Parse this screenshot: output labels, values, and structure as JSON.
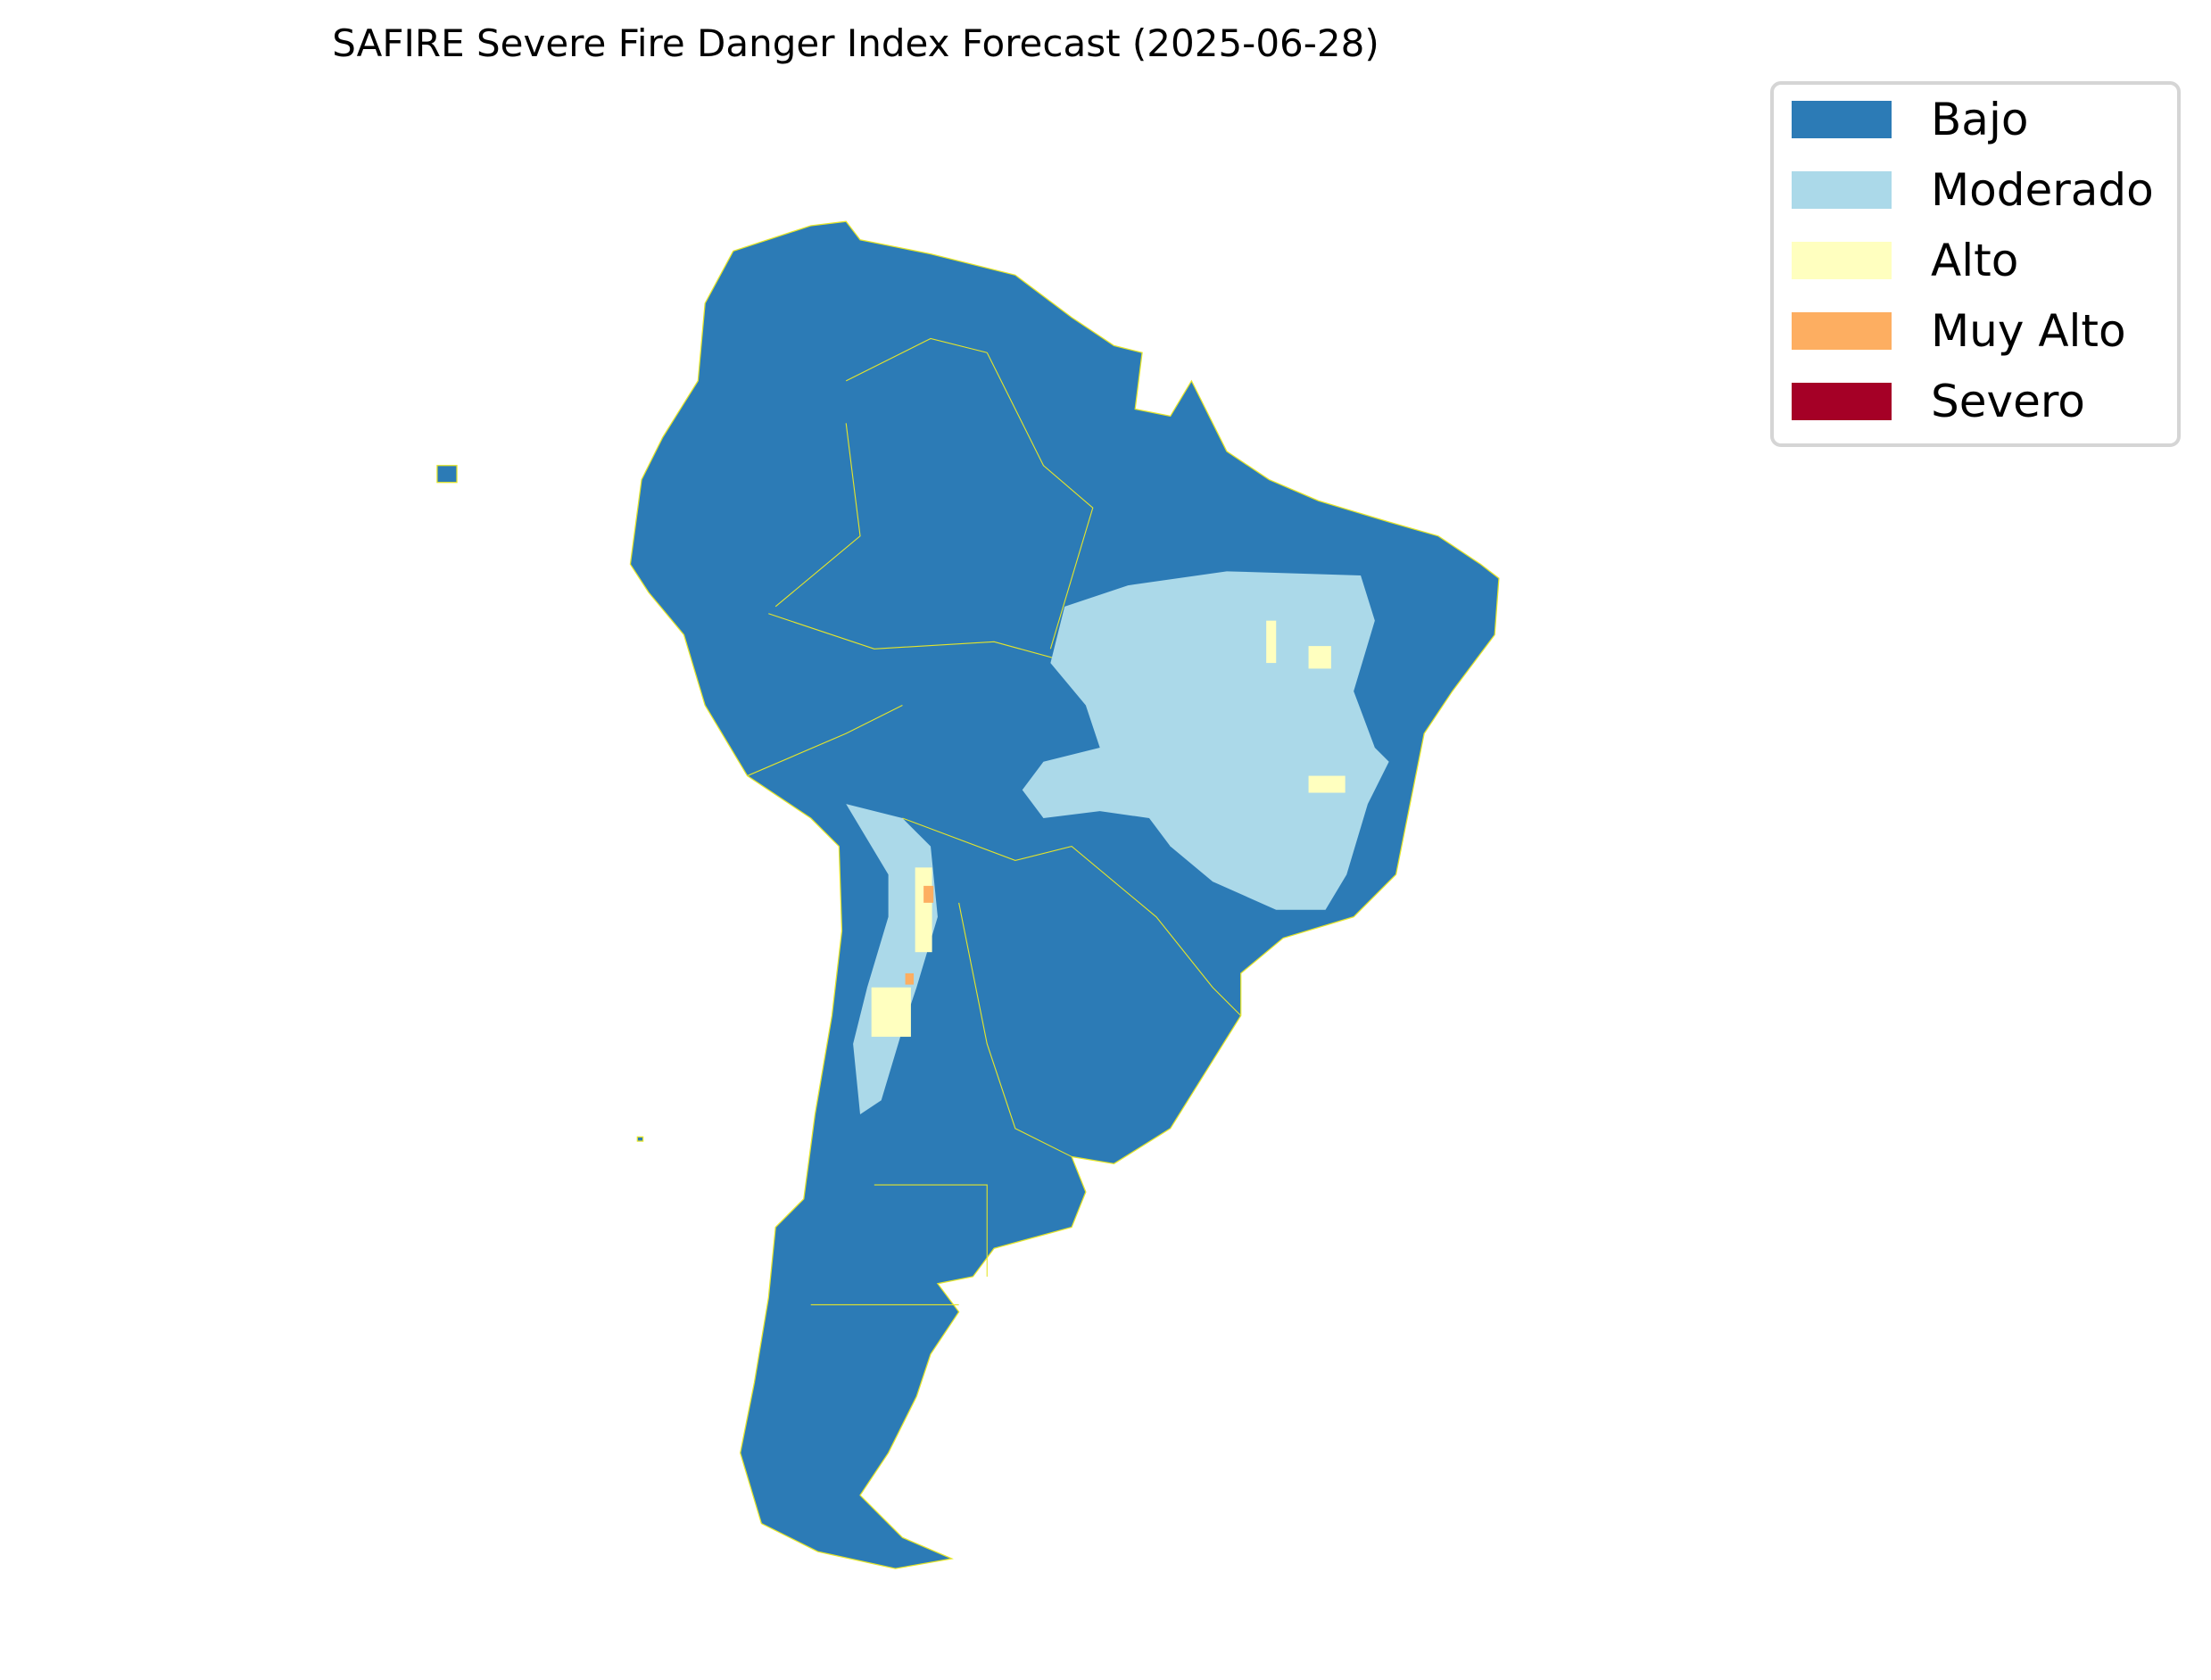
{
  "title": "SAFIRE Severe Fire Danger Index Forecast (2025-06-28)",
  "legend": {
    "placement": "top-right",
    "items": [
      {
        "label": "Bajo",
        "color": "#2c7bb6"
      },
      {
        "label": "Moderado",
        "color": "#abd9e9"
      },
      {
        "label": "Alto",
        "color": "#ffffbf"
      },
      {
        "label": "Muy Alto",
        "color": "#fdae61"
      },
      {
        "label": "Severo",
        "color": "#a50026"
      }
    ]
  },
  "map": {
    "region": "South America",
    "boundary_color": "#e5e52a",
    "dominant_class": "Bajo"
  }
}
